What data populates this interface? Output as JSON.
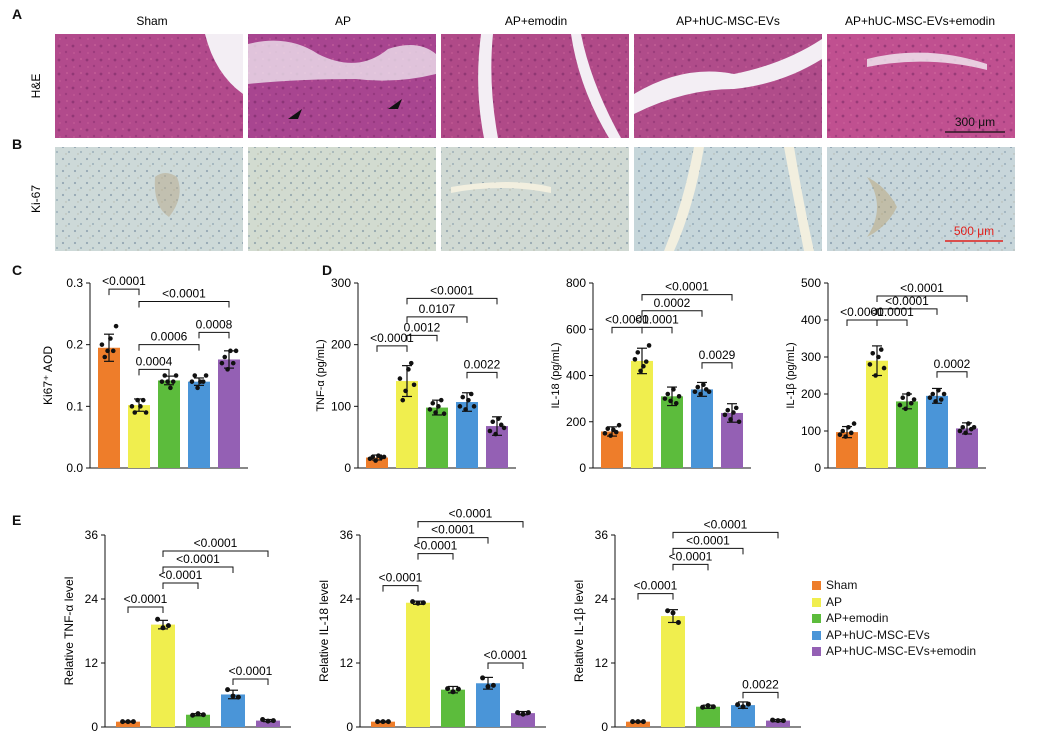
{
  "panel_labels": [
    "A",
    "B",
    "C",
    "D",
    "E"
  ],
  "groups": [
    "Sham",
    "AP",
    "AP+emodin",
    "AP+hUC-MSC-EVs",
    "AP+hUC-MSC-EVs+emodin"
  ],
  "group_colors": [
    "#ee7d2a",
    "#f0ee4e",
    "#5cbc3c",
    "#4a95d8",
    "#9460b4"
  ],
  "histology": {
    "row_labels": [
      "H&E",
      "Ki-67"
    ],
    "he_colors": [
      "#b24a8c",
      "#a84590",
      "#b04a88",
      "#b04c8a",
      "#c05090"
    ],
    "ki67_colors": [
      "#cdd9d8",
      "#d2dbd0",
      "#d0d9d3",
      "#c6d6da",
      "#c8d6da"
    ],
    "scale_bars": [
      "300 μm",
      "500 μm"
    ],
    "arrow_icon": "arrowhead-icon"
  },
  "legend": {
    "entries": [
      "Sham",
      "AP",
      "AP+emodin",
      "AP+hUC-MSC-EVs",
      "AP+hUC-MSC-EVs+emodin"
    ]
  },
  "chart_data": [
    {
      "panel": "C",
      "type": "bar",
      "categories": [
        "Sham",
        "AP",
        "AP+emodin",
        "AP+hUC-MSC-EVs",
        "AP+hUC-MSC-EVs+emodin"
      ],
      "values": [
        0.195,
        0.102,
        0.142,
        0.14,
        0.176
      ],
      "errors": [
        0.022,
        0.01,
        0.007,
        0.006,
        0.014
      ],
      "points": [
        [
          0.2,
          0.18,
          0.19,
          0.21,
          0.19,
          0.23
        ],
        [
          0.1,
          0.09,
          0.11,
          0.1,
          0.11,
          0.09
        ],
        [
          0.14,
          0.15,
          0.14,
          0.13,
          0.14,
          0.15
        ],
        [
          0.14,
          0.15,
          0.13,
          0.14,
          0.14,
          0.15
        ],
        [
          0.17,
          0.18,
          0.16,
          0.19,
          0.17,
          0.19
        ]
      ],
      "ylabel": "Ki67⁺ AOD",
      "ylim": [
        0,
        0.3
      ],
      "yticks": [
        "0.0",
        "0.1",
        "0.2",
        "0.3"
      ],
      "comparisons": [
        {
          "a": 0,
          "b": 1,
          "label": "<0.0001",
          "y": 0.29
        },
        {
          "a": 1,
          "b": 4,
          "label": "<0.0001",
          "y": 0.27
        },
        {
          "a": 1,
          "b": 3,
          "label": "0.0006",
          "y": 0.2
        },
        {
          "a": 3,
          "b": 4,
          "label": "0.0008",
          "y": 0.22
        },
        {
          "a": 1,
          "b": 2,
          "label": "0.0004",
          "y": 0.16
        }
      ]
    },
    {
      "panel": "D",
      "type": "bar",
      "categories": [
        "Sham",
        "AP",
        "AP+emodin",
        "AP+hUC-MSC-EVs",
        "AP+hUC-MSC-EVs+emodin"
      ],
      "values": [
        17,
        141,
        98,
        107,
        68
      ],
      "errors": [
        4,
        25,
        12,
        15,
        15
      ],
      "points": [
        [
          15,
          18,
          12,
          20,
          17,
          18
        ],
        [
          145,
          110,
          125,
          160,
          170,
          135
        ],
        [
          95,
          105,
          90,
          100,
          110,
          88
        ],
        [
          100,
          115,
          95,
          110,
          120,
          100
        ],
        [
          60,
          75,
          55,
          80,
          70,
          65
        ]
      ],
      "ylabel": "TNF-α (pg/mL)",
      "ylim": [
        0,
        300
      ],
      "yticks": [
        "0",
        "100",
        "200",
        "300"
      ],
      "comparisons": [
        {
          "a": 1,
          "b": 4,
          "label": "<0.0001",
          "y": 275
        },
        {
          "a": 1,
          "b": 3,
          "label": "0.0107",
          "y": 245
        },
        {
          "a": 1,
          "b": 2,
          "label": "0.0012",
          "y": 215
        },
        {
          "a": 0,
          "b": 1,
          "label": "<0.0001",
          "y": 198
        },
        {
          "a": 3,
          "b": 4,
          "label": "0.0022",
          "y": 155
        }
      ]
    },
    {
      "panel": "D",
      "type": "bar",
      "categories": [
        "Sham",
        "AP",
        "AP+emodin",
        "AP+hUC-MSC-EVs",
        "AP+hUC-MSC-EVs+emodin"
      ],
      "values": [
        158,
        463,
        310,
        340,
        238
      ],
      "errors": [
        20,
        55,
        40,
        30,
        40
      ],
      "points": [
        [
          150,
          170,
          140,
          165,
          155,
          185
        ],
        [
          470,
          500,
          420,
          440,
          460,
          530
        ],
        [
          300,
          320,
          290,
          340,
          280,
          310
        ],
        [
          330,
          350,
          320,
          360,
          340,
          330
        ],
        [
          230,
          250,
          210,
          240,
          260,
          200
        ]
      ],
      "ylabel": "IL-18 (pg/mL)",
      "ylim": [
        0,
        800
      ],
      "yticks": [
        "0",
        "200",
        "400",
        "600",
        "800"
      ],
      "comparisons": [
        {
          "a": 1,
          "b": 4,
          "label": "<0.0001",
          "y": 750
        },
        {
          "a": 1,
          "b": 3,
          "label": "0.0002",
          "y": 680
        },
        {
          "a": 0,
          "b": 1,
          "label": "<0.0001",
          "y": 608
        },
        {
          "a": 1,
          "b": 2,
          "label": "<0.0001",
          "y": 608
        },
        {
          "a": 3,
          "b": 4,
          "label": "0.0029",
          "y": 455
        }
      ]
    },
    {
      "panel": "D",
      "type": "bar",
      "categories": [
        "Sham",
        "AP",
        "AP+emodin",
        "AP+hUC-MSC-EVs",
        "AP+hUC-MSC-EVs+emodin"
      ],
      "values": [
        97,
        290,
        180,
        195,
        107
      ],
      "errors": [
        15,
        40,
        20,
        20,
        15
      ],
      "points": [
        [
          90,
          100,
          85,
          110,
          95,
          120
        ],
        [
          280,
          310,
          250,
          300,
          320,
          270
        ],
        [
          170,
          190,
          160,
          200,
          175,
          185
        ],
        [
          190,
          200,
          180,
          210,
          185,
          200
        ],
        [
          100,
          110,
          95,
          120,
          105,
          110
        ]
      ],
      "ylabel": "IL-1β (pg/mL)",
      "ylim": [
        0,
        500
      ],
      "yticks": [
        "0",
        "100",
        "200",
        "300",
        "400",
        "500"
      ],
      "comparisons": [
        {
          "a": 1,
          "b": 4,
          "label": "<0.0001",
          "y": 465
        },
        {
          "a": 1,
          "b": 3,
          "label": "<0.0001",
          "y": 430
        },
        {
          "a": 0,
          "b": 1,
          "label": "<0.0001",
          "y": 400
        },
        {
          "a": 1,
          "b": 2,
          "label": "<0.0001",
          "y": 400
        },
        {
          "a": 3,
          "b": 4,
          "label": "0.0002",
          "y": 260
        }
      ]
    },
    {
      "panel": "E",
      "type": "bar",
      "categories": [
        "Sham",
        "AP",
        "AP+emodin",
        "AP+hUC-MSC-EVs",
        "AP+hUC-MSC-EVs+emodin"
      ],
      "values": [
        1.0,
        19.2,
        2.3,
        6.1,
        1.2
      ],
      "errors": [
        0.1,
        0.8,
        0.2,
        0.8,
        0.2
      ],
      "points": [
        [
          1.0,
          1.0,
          1.0
        ],
        [
          20.2,
          18.6,
          19.0
        ],
        [
          2.2,
          2.5,
          2.3
        ],
        [
          7.0,
          5.8,
          5.6
        ],
        [
          1.4,
          1.1,
          1.2
        ]
      ],
      "ylabel": "Relative TNF-α level",
      "ylim": [
        0,
        36
      ],
      "yticks": [
        "0",
        "12",
        "24",
        "36"
      ],
      "comparisons": [
        {
          "a": 1,
          "b": 4,
          "label": "<0.0001",
          "y": 33
        },
        {
          "a": 1,
          "b": 3,
          "label": "<0.0001",
          "y": 30
        },
        {
          "a": 1,
          "b": 2,
          "label": "<0.0001",
          "y": 27
        },
        {
          "a": 0,
          "b": 1,
          "label": "<0.0001",
          "y": 22.5
        },
        {
          "a": 3,
          "b": 4,
          "label": "<0.0001",
          "y": 9
        }
      ]
    },
    {
      "panel": "E",
      "type": "bar",
      "categories": [
        "Sham",
        "AP",
        "AP+emodin",
        "AP+hUC-MSC-EVs",
        "AP+hUC-MSC-EVs+emodin"
      ],
      "values": [
        1.0,
        23.3,
        7.0,
        8.2,
        2.6
      ],
      "errors": [
        0.1,
        0.3,
        0.6,
        1.1,
        0.3
      ],
      "points": [
        [
          1.0,
          1.0,
          1.0
        ],
        [
          23.5,
          23.2,
          23.3
        ],
        [
          7.2,
          6.6,
          7.1
        ],
        [
          9.2,
          7.6,
          7.8
        ],
        [
          2.7,
          2.4,
          2.7
        ]
      ],
      "ylabel": "Relative IL-18 level",
      "ylim": [
        0,
        36
      ],
      "yticks": [
        "0",
        "12",
        "24",
        "36"
      ],
      "comparisons": [
        {
          "a": 1,
          "b": 4,
          "label": "<0.0001",
          "y": 38.5
        },
        {
          "a": 1,
          "b": 3,
          "label": "<0.0001",
          "y": 35.5
        },
        {
          "a": 1,
          "b": 2,
          "label": "<0.0001",
          "y": 32.5
        },
        {
          "a": 0,
          "b": 1,
          "label": "<0.0001",
          "y": 26.5
        },
        {
          "a": 3,
          "b": 4,
          "label": "<0.0001",
          "y": 12
        }
      ]
    },
    {
      "panel": "E",
      "type": "bar",
      "categories": [
        "Sham",
        "AP",
        "AP+emodin",
        "AP+hUC-MSC-EVs",
        "AP+hUC-MSC-EVs+emodin"
      ],
      "values": [
        1.0,
        20.8,
        3.8,
        4.1,
        1.2
      ],
      "errors": [
        0.1,
        1.2,
        0.3,
        0.6,
        0.2
      ],
      "points": [
        [
          1.0,
          1.0,
          1.0
        ],
        [
          21.8,
          21.4,
          19.6
        ],
        [
          3.7,
          4.0,
          3.8
        ],
        [
          4.2,
          3.8,
          4.3
        ],
        [
          1.3,
          1.2,
          1.2
        ]
      ],
      "ylabel": "Relative IL-1β level",
      "ylim": [
        0,
        36
      ],
      "yticks": [
        "0",
        "12",
        "24",
        "36"
      ],
      "comparisons": [
        {
          "a": 1,
          "b": 4,
          "label": "<0.0001",
          "y": 36.5
        },
        {
          "a": 1,
          "b": 3,
          "label": "<0.0001",
          "y": 33.5
        },
        {
          "a": 1,
          "b": 2,
          "label": "<0.0001",
          "y": 30.5
        },
        {
          "a": 0,
          "b": 1,
          "label": "<0.0001",
          "y": 25
        },
        {
          "a": 3,
          "b": 4,
          "label": "0.0022",
          "y": 6.5
        }
      ]
    }
  ]
}
